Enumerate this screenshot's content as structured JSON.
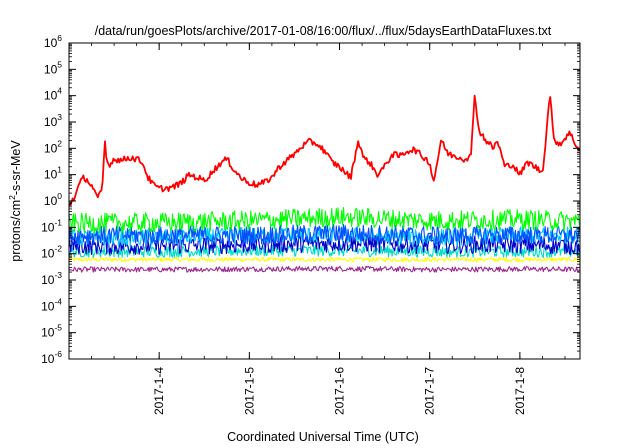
{
  "chart_data": {
    "type": "line",
    "title": "/data/run/goesPlots/archive/2017-01-08/16:00/flux/../flux/5daysEarthDataFluxes.txt",
    "xlabel": "Coordinated Universal Time (UTC)",
    "ylabel": {
      "base": "protons/cm",
      "sup": "2",
      "rest": "-s-sr-MeV"
    },
    "y_scale": "log",
    "ylim": [
      1e-06,
      1000000.0
    ],
    "xlim": [
      "2017-01-03 00:00",
      "2017-01-08 16:00"
    ],
    "grid": false,
    "legend": "none",
    "y_ticks": [
      {
        "value": -6,
        "base": "10",
        "exp": "-6"
      },
      {
        "value": -5,
        "base": "10",
        "exp": "-5"
      },
      {
        "value": -4,
        "base": "10",
        "exp": "-4"
      },
      {
        "value": -3,
        "base": "10",
        "exp": "-3"
      },
      {
        "value": -2,
        "base": "10",
        "exp": "-2"
      },
      {
        "value": -1,
        "base": "10",
        "exp": "-1"
      },
      {
        "value": 0,
        "base": "10",
        "exp": "0"
      },
      {
        "value": 1,
        "base": "10",
        "exp": "1"
      },
      {
        "value": 2,
        "base": "10",
        "exp": "2"
      },
      {
        "value": 3,
        "base": "10",
        "exp": "3"
      },
      {
        "value": 4,
        "base": "10",
        "exp": "4"
      },
      {
        "value": 5,
        "base": "10",
        "exp": "5"
      },
      {
        "value": 6,
        "base": "10",
        "exp": "6"
      }
    ],
    "x_ticks": [
      {
        "label": "2017-1-4",
        "t": "2017-01-04"
      },
      {
        "label": "2017-1-5",
        "t": "2017-01-05"
      },
      {
        "label": "2017-1-6",
        "t": "2017-01-06"
      },
      {
        "label": "2017-1-7",
        "t": "2017-01-07"
      },
      {
        "label": "2017-1-8",
        "t": "2017-01-08"
      }
    ],
    "series": [
      {
        "color": "#ff0000",
        "points": [
          [
            "2017-01-03 00:00",
            0.7
          ],
          [
            "2017-01-03 01:30",
            1.5
          ],
          [
            "2017-01-03 03:00",
            5
          ],
          [
            "2017-01-03 04:00",
            8
          ],
          [
            "2017-01-03 05:00",
            6
          ],
          [
            "2017-01-03 06:30",
            3
          ],
          [
            "2017-01-03 07:30",
            1.2
          ],
          [
            "2017-01-03 08:30",
            2
          ],
          [
            "2017-01-03 09:00",
            5
          ],
          [
            "2017-01-03 09:30",
            250
          ],
          [
            "2017-01-03 10:00",
            30
          ],
          [
            "2017-01-03 11:00",
            25
          ],
          [
            "2017-01-03 12:00",
            40
          ],
          [
            "2017-01-03 14:00",
            35
          ],
          [
            "2017-01-03 16:00",
            45
          ],
          [
            "2017-01-03 18:00",
            40
          ],
          [
            "2017-01-03 19:30",
            30
          ],
          [
            "2017-01-03 21:00",
            8
          ],
          [
            "2017-01-03 22:30",
            4
          ],
          [
            "2017-01-04 00:00",
            3
          ],
          [
            "2017-01-04 02:00",
            3
          ],
          [
            "2017-01-04 04:00",
            3.5
          ],
          [
            "2017-01-04 06:00",
            5
          ],
          [
            "2017-01-04 08:00",
            10
          ],
          [
            "2017-01-04 10:00",
            8
          ],
          [
            "2017-01-04 12:00",
            6
          ],
          [
            "2017-01-04 14:00",
            12
          ],
          [
            "2017-01-04 16:00",
            25
          ],
          [
            "2017-01-04 18:00",
            40
          ],
          [
            "2017-01-04 20:00",
            15
          ],
          [
            "2017-01-04 22:00",
            7
          ],
          [
            "2017-01-05 00:00",
            5
          ],
          [
            "2017-01-05 02:00",
            4
          ],
          [
            "2017-01-05 04:00",
            5
          ],
          [
            "2017-01-05 06:00",
            8
          ],
          [
            "2017-01-05 08:00",
            20
          ],
          [
            "2017-01-05 10:00",
            35
          ],
          [
            "2017-01-05 12:00",
            60
          ],
          [
            "2017-01-05 14:00",
            120
          ],
          [
            "2017-01-05 16:00",
            180
          ],
          [
            "2017-01-05 18:00",
            150
          ],
          [
            "2017-01-05 20:00",
            80
          ],
          [
            "2017-01-05 22:00",
            30
          ],
          [
            "2017-01-06 00:00",
            20
          ],
          [
            "2017-01-06 01:30",
            12
          ],
          [
            "2017-01-06 03:00",
            8
          ],
          [
            "2017-01-06 05:00",
            200
          ],
          [
            "2017-01-06 06:30",
            40
          ],
          [
            "2017-01-06 08:00",
            30
          ],
          [
            "2017-01-06 10:00",
            10
          ],
          [
            "2017-01-06 12:00",
            20
          ],
          [
            "2017-01-06 14:00",
            60
          ],
          [
            "2017-01-06 16:00",
            50
          ],
          [
            "2017-01-06 18:00",
            80
          ],
          [
            "2017-01-06 20:00",
            90
          ],
          [
            "2017-01-06 22:00",
            50
          ],
          [
            "2017-01-07 00:00",
            30
          ],
          [
            "2017-01-07 01:00",
            5
          ],
          [
            "2017-01-07 02:00",
            30
          ],
          [
            "2017-01-07 03:00",
            200
          ],
          [
            "2017-01-07 05:00",
            60
          ],
          [
            "2017-01-07 07:00",
            50
          ],
          [
            "2017-01-07 09:00",
            40
          ],
          [
            "2017-01-07 11:00",
            50
          ],
          [
            "2017-01-07 12:00",
            15000
          ],
          [
            "2017-01-07 13:00",
            500
          ],
          [
            "2017-01-07 15:00",
            200
          ],
          [
            "2017-01-07 17:00",
            100
          ],
          [
            "2017-01-07 18:00",
            200
          ],
          [
            "2017-01-07 20:00",
            20
          ],
          [
            "2017-01-07 22:00",
            25
          ],
          [
            "2017-01-08 00:00",
            10
          ],
          [
            "2017-01-08 02:00",
            30
          ],
          [
            "2017-01-08 04:00",
            20
          ],
          [
            "2017-01-08 06:00",
            12
          ],
          [
            "2017-01-08 07:00",
            300
          ],
          [
            "2017-01-08 08:00",
            15000
          ],
          [
            "2017-01-08 09:00",
            200
          ],
          [
            "2017-01-08 11:00",
            150
          ],
          [
            "2017-01-08 13:00",
            400
          ],
          [
            "2017-01-08 14:00",
            250
          ],
          [
            "2017-01-08 16:00",
            70
          ]
        ]
      },
      {
        "color": "#00ff00",
        "points": [
          [
            "2017-01-03 00:00",
            0.14
          ],
          [
            "2017-01-04 00:00",
            0.15
          ],
          [
            "2017-01-05 00:00",
            0.18
          ],
          [
            "2017-01-06 00:00",
            0.25
          ],
          [
            "2017-01-07 00:00",
            0.18
          ],
          [
            "2017-01-08 00:00",
            0.2
          ],
          [
            "2017-01-08 16:00",
            0.17
          ]
        ]
      },
      {
        "color": "#00c8ff",
        "points": [
          [
            "2017-01-03 00:00",
            0.04
          ],
          [
            "2017-01-04 00:00",
            0.04
          ],
          [
            "2017-01-05 00:00",
            0.05
          ],
          [
            "2017-01-06 00:00",
            0.05
          ],
          [
            "2017-01-07 00:00",
            0.04
          ],
          [
            "2017-01-08 00:00",
            0.05
          ],
          [
            "2017-01-08 16:00",
            0.05
          ]
        ]
      },
      {
        "color": "#0050ff",
        "points": [
          [
            "2017-01-03 00:00",
            0.05
          ],
          [
            "2017-01-04 00:00",
            0.05
          ],
          [
            "2017-01-05 00:00",
            0.05
          ],
          [
            "2017-01-06 00:00",
            0.06
          ],
          [
            "2017-01-07 00:00",
            0.05
          ],
          [
            "2017-01-08 00:00",
            0.05
          ],
          [
            "2017-01-08 16:00",
            0.05
          ]
        ]
      },
      {
        "color": "#0000c8",
        "points": [
          [
            "2017-01-03 00:00",
            0.02
          ],
          [
            "2017-01-04 00:00",
            0.02
          ],
          [
            "2017-01-05 00:00",
            0.022
          ],
          [
            "2017-01-06 00:00",
            0.025
          ],
          [
            "2017-01-07 00:00",
            0.022
          ],
          [
            "2017-01-08 00:00",
            0.022
          ],
          [
            "2017-01-08 16:00",
            0.02
          ]
        ]
      },
      {
        "color": "#00dcc8",
        "points": [
          [
            "2017-01-03 00:00",
            0.012
          ],
          [
            "2017-01-04 00:00",
            0.012
          ],
          [
            "2017-01-05 00:00",
            0.013
          ],
          [
            "2017-01-06 00:00",
            0.013
          ],
          [
            "2017-01-07 00:00",
            0.012
          ],
          [
            "2017-01-08 00:00",
            0.012
          ],
          [
            "2017-01-08 16:00",
            0.012
          ]
        ]
      },
      {
        "color": "#ffff00",
        "points": [
          [
            "2017-01-03 00:00",
            0.006
          ],
          [
            "2017-01-04 00:00",
            0.006
          ],
          [
            "2017-01-05 00:00",
            0.006
          ],
          [
            "2017-01-06 00:00",
            0.006
          ],
          [
            "2017-01-07 00:00",
            0.006
          ],
          [
            "2017-01-08 00:00",
            0.006
          ],
          [
            "2017-01-08 16:00",
            0.006
          ]
        ]
      },
      {
        "color": "#a0288c",
        "points": [
          [
            "2017-01-03 00:00",
            0.0025
          ],
          [
            "2017-01-04 00:00",
            0.0025
          ],
          [
            "2017-01-05 00:00",
            0.0026
          ],
          [
            "2017-01-06 00:00",
            0.0027
          ],
          [
            "2017-01-07 00:00",
            0.0025
          ],
          [
            "2017-01-08 00:00",
            0.0026
          ],
          [
            "2017-01-08 16:00",
            0.0025
          ]
        ]
      }
    ]
  }
}
